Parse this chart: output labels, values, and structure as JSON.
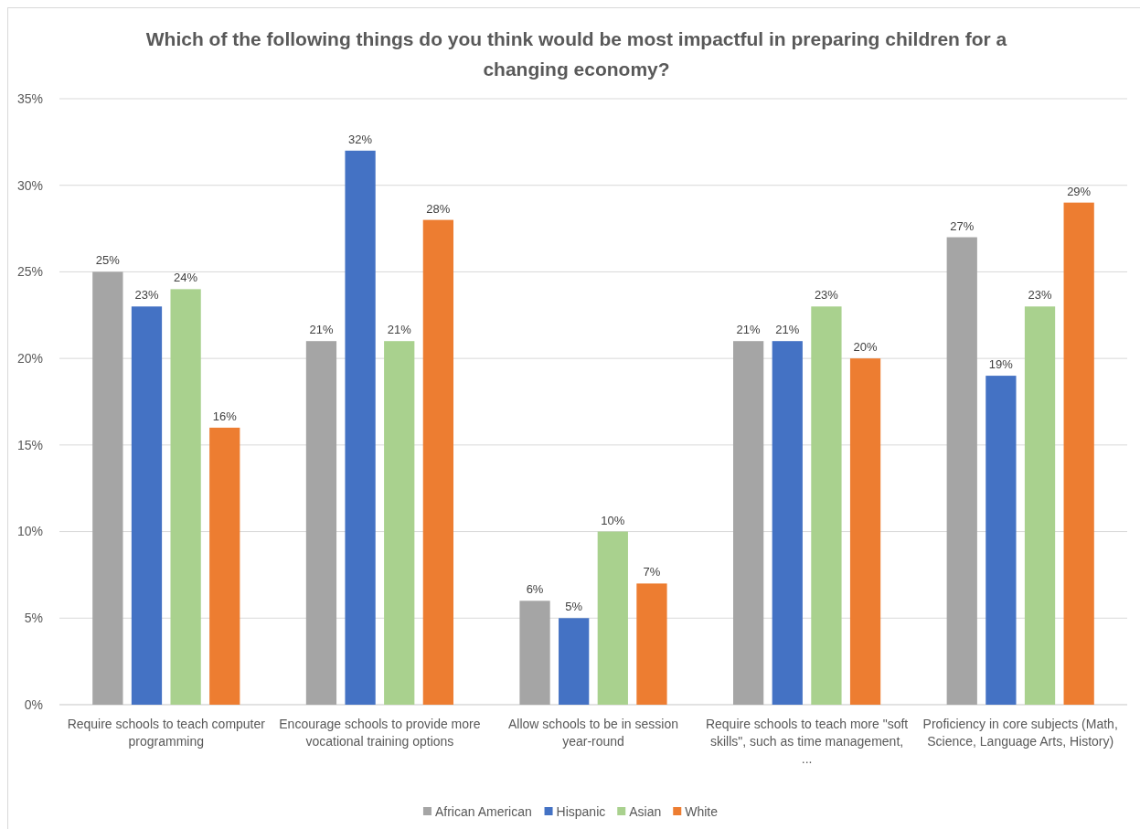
{
  "chart_data": {
    "type": "bar",
    "title": "Which of the following things do you think would be most impactful in preparing children for a changing economy?",
    "categories": [
      "Require schools to teach computer programming",
      "Encourage schools to provide more vocational training options",
      "Allow schools to be in session year-round",
      "Require schools to teach more \"soft skills\", such as time management, ...",
      "Proficiency in core subjects (Math, Science, Language Arts, History)"
    ],
    "series": [
      {
        "name": "African American",
        "color": "#a5a5a5",
        "values": [
          25,
          21,
          6,
          21,
          27
        ],
        "value_labels": [
          "25%",
          "21%",
          "6%",
          "21%",
          "27%"
        ]
      },
      {
        "name": "Hispanic",
        "color": "#4472c4",
        "values": [
          23,
          32,
          5,
          21,
          19
        ],
        "value_labels": [
          "23%",
          "32%",
          "5%",
          "21%",
          "19%"
        ]
      },
      {
        "name": "Asian",
        "color": "#a9d18e",
        "values": [
          24,
          21,
          10,
          23,
          23
        ],
        "value_labels": [
          "24%",
          "21%",
          "10%",
          "23%",
          "23%"
        ]
      },
      {
        "name": "White",
        "color": "#ed7d31",
        "values": [
          16,
          28,
          7,
          20,
          29
        ],
        "value_labels": [
          "16%",
          "28%",
          "7%",
          "20%",
          "29%"
        ]
      }
    ],
    "ylim": [
      0,
      35
    ],
    "yticks": [
      {
        "value": 0,
        "label": "0%"
      },
      {
        "value": 5,
        "label": "5%"
      },
      {
        "value": 10,
        "label": "10%"
      },
      {
        "value": 15,
        "label": "15%"
      },
      {
        "value": 20,
        "label": "20%"
      },
      {
        "value": 25,
        "label": "25%"
      },
      {
        "value": 30,
        "label": "30%"
      },
      {
        "value": 35,
        "label": "35%"
      }
    ],
    "grid": "y",
    "legend": "bottom"
  }
}
